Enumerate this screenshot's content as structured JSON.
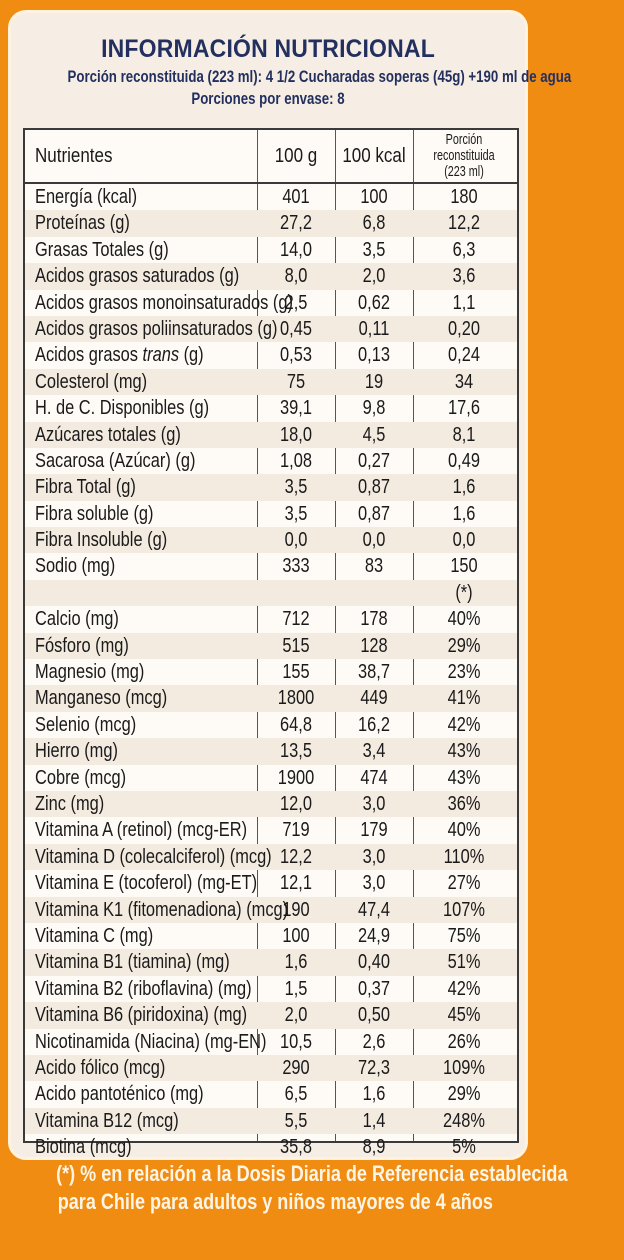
{
  "header": {
    "title": "INFORMACIÓN NUTRICIONAL",
    "serving": "Porción reconstituida (223 ml): 4 1/2 Cucharadas soperas (45g) +190 ml de agua",
    "servings_per_pack": "Porciones por envase: 8"
  },
  "table": {
    "columns": [
      "Nutrientes",
      "100 g",
      "100 kcal",
      "Porción reconstituida",
      "(223 ml)"
    ],
    "rows": [
      [
        "Energía (kcal)",
        "401",
        "100",
        "180"
      ],
      [
        "Proteínas (g)",
        "27,2",
        "6,8",
        "12,2"
      ],
      [
        "Grasas Totales (g)",
        "14,0",
        "3,5",
        "6,3"
      ],
      [
        "Acidos grasos saturados (g)",
        "8,0",
        "2,0",
        "3,6"
      ],
      [
        "Acidos grasos monoinsaturados (g)",
        "2,5",
        "0,62",
        "1,1"
      ],
      [
        "Acidos grasos poliinsaturados (g)",
        "0,45",
        "0,11",
        "0,20"
      ],
      [
        "Acidos grasos trans (g)",
        "0,53",
        "0,13",
        "0,24"
      ],
      [
        "Colesterol (mg)",
        "75",
        "19",
        "34"
      ],
      [
        "H. de C. Disponibles (g)",
        "39,1",
        "9,8",
        "17,6"
      ],
      [
        "Azúcares totales (g)",
        "18,0",
        "4,5",
        "8,1"
      ],
      [
        "Sacarosa (Azúcar) (g)",
        "1,08",
        "0,27",
        "0,49"
      ],
      [
        "Fibra Total (g)",
        "3,5",
        "0,87",
        "1,6"
      ],
      [
        "Fibra soluble (g)",
        "3,5",
        "0,87",
        "1,6"
      ],
      [
        "Fibra Insoluble (g)",
        "0,0",
        "0,0",
        "0,0"
      ],
      [
        "Sodio (mg)",
        "333",
        "83",
        "150"
      ],
      [
        "",
        "",
        "",
        "(*)"
      ],
      [
        "Calcio (mg)",
        "712",
        "178",
        "40%"
      ],
      [
        "Fósforo (mg)",
        "515",
        "128",
        "29%"
      ],
      [
        "Magnesio (mg)",
        "155",
        "38,7",
        "23%"
      ],
      [
        "Manganeso (mcg)",
        "1800",
        "449",
        "41%"
      ],
      [
        "Selenio (mcg)",
        "64,8",
        "16,2",
        "42%"
      ],
      [
        "Hierro (mg)",
        "13,5",
        "3,4",
        "43%"
      ],
      [
        "Cobre (mcg)",
        "1900",
        "474",
        "43%"
      ],
      [
        "Zinc (mg)",
        "12,0",
        "3,0",
        "36%"
      ],
      [
        "Vitamina A (retinol) (mcg-ER)",
        "719",
        "179",
        "40%"
      ],
      [
        "Vitamina D (colecalciferol) (mcg)",
        "12,2",
        "3,0",
        "110%"
      ],
      [
        "Vitamina E (tocoferol) (mg-ET)",
        "12,1",
        "3,0",
        "27%"
      ],
      [
        "Vitamina K1 (fitomenadiona) (mcg)",
        "190",
        "47,4",
        "107%"
      ],
      [
        "Vitamina C (mg)",
        "100",
        "24,9",
        "75%"
      ],
      [
        "Vitamina B1 (tiamina) (mg)",
        "1,6",
        "0,40",
        "51%"
      ],
      [
        "Vitamina B2 (riboflavina) (mg)",
        "1,5",
        "0,37",
        "42%"
      ],
      [
        "Vitamina B6 (piridoxina) (mg)",
        "2,0",
        "0,50",
        "45%"
      ],
      [
        "Nicotinamida (Niacina) (mg-EN)",
        "10,5",
        "2,6",
        "26%"
      ],
      [
        "Acido fólico (mcg)",
        "290",
        "72,3",
        "109%"
      ],
      [
        "Acido pantoténico (mg)",
        "6,5",
        "1,6",
        "29%"
      ],
      [
        "Vitamina B12 (mcg)",
        "5,5",
        "1,4",
        "248%"
      ],
      [
        "Biotina (mcg)",
        "35,8",
        "8,9",
        "5%"
      ]
    ]
  },
  "footnote": {
    "line1": "(*) % en relación a la Dosis Diaria de Referencia establecida",
    "line2": "para Chile para adultos y niños mayores de 4 años"
  },
  "colors": {
    "background": "#f08c12",
    "panel": "#f6eee4",
    "title": "#23305f"
  }
}
